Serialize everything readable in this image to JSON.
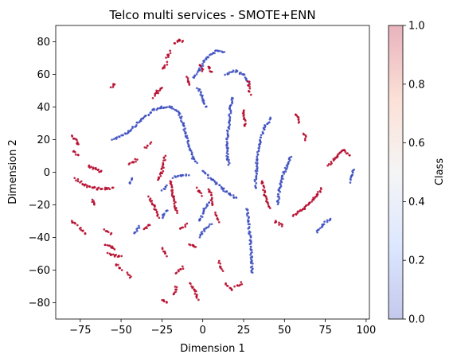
{
  "chart_data": {
    "type": "scatter",
    "title": "Telco multi services - SMOTE+ENN",
    "xlabel": "Dimension 1",
    "ylabel": "Dimension 2",
    "xlim": [
      -90,
      102
    ],
    "ylim": [
      -90,
      90
    ],
    "xticks": [
      -75,
      -50,
      -25,
      0,
      25,
      50,
      75,
      100
    ],
    "yticks": [
      -80,
      -60,
      -40,
      -20,
      0,
      20,
      40,
      60,
      80
    ],
    "xtick_labels": [
      "−75",
      "−50",
      "−25",
      "0",
      "25",
      "50",
      "75",
      "100"
    ],
    "ytick_labels": [
      "−80",
      "−60",
      "−40",
      "−20",
      "0",
      "20",
      "40",
      "60",
      "80"
    ],
    "grid": false,
    "legend": "none",
    "colorbar": {
      "label": "Class",
      "range": [
        0.0,
        1.0
      ],
      "ticks": [
        0.0,
        0.2,
        0.4,
        0.6,
        0.8,
        1.0
      ],
      "tick_labels": [
        "0.0",
        "0.2",
        "0.4",
        "0.6",
        "0.8",
        "1.0"
      ],
      "colormap": "coolwarm",
      "alpha": 0.3
    },
    "colors": {
      "class_0": "#3b4cc0",
      "class_1": "#b40426"
    },
    "series": [
      {
        "class": 0,
        "curves": [
          [
            [
              -6,
              58
            ],
            [
              -2,
              63
            ],
            [
              2,
              70
            ],
            [
              8,
              74
            ],
            [
              13,
              74
            ]
          ],
          [
            [
              -55,
              20
            ],
            [
              -45,
              25
            ],
            [
              -38,
              32
            ],
            [
              -30,
              38
            ],
            [
              -25,
              40
            ],
            [
              -20,
              40
            ],
            [
              -15,
              37
            ],
            [
              -12,
              30
            ],
            [
              -10,
              22
            ],
            [
              -8,
              15
            ],
            [
              -6,
              9
            ],
            [
              -4,
              6
            ]
          ],
          [
            [
              0,
              1
            ],
            [
              5,
              -4
            ],
            [
              12,
              -10
            ],
            [
              17,
              -14
            ],
            [
              21,
              -16
            ]
          ],
          [
            [
              14,
              60
            ],
            [
              20,
              62
            ],
            [
              25,
              60
            ],
            [
              28,
              55
            ]
          ],
          [
            [
              18,
              46
            ],
            [
              17,
              40
            ],
            [
              16,
              30
            ],
            [
              15,
              20
            ],
            [
              15,
              10
            ],
            [
              16,
              5
            ]
          ],
          [
            [
              27,
              -22
            ],
            [
              28,
              -30
            ],
            [
              29,
              -42
            ],
            [
              30,
              -55
            ],
            [
              30,
              -62
            ]
          ],
          [
            [
              32,
              -10
            ],
            [
              33,
              5
            ],
            [
              35,
              18
            ],
            [
              38,
              28
            ],
            [
              42,
              33
            ]
          ],
          [
            [
              46,
              -20
            ],
            [
              47,
              -10
            ],
            [
              49,
              -2
            ],
            [
              52,
              5
            ],
            [
              54,
              10
            ]
          ],
          [
            [
              70,
              -37
            ],
            [
              74,
              -32
            ],
            [
              78,
              -28
            ]
          ],
          [
            [
              90,
              -6
            ],
            [
              91,
              -2
            ],
            [
              92,
              2
            ]
          ],
          [
            [
              -2,
              -30
            ],
            [
              1,
              -23
            ],
            [
              4,
              -18
            ]
          ],
          [
            [
              -2,
              -40
            ],
            [
              1,
              -35
            ],
            [
              5,
              -32
            ]
          ],
          [
            [
              -18,
              -3
            ],
            [
              -14,
              -2
            ],
            [
              -9,
              -2
            ]
          ],
          [
            [
              -3,
              52
            ],
            [
              0,
              46
            ],
            [
              2,
              40
            ]
          ],
          [
            [
              -45,
              -7
            ],
            [
              -43,
              -4
            ]
          ],
          [
            [
              -25,
              -11
            ],
            [
              -22,
              -8
            ]
          ],
          [
            [
              -25,
              -28
            ],
            [
              -22,
              -23
            ]
          ],
          [
            [
              -42,
              -38
            ],
            [
              -39,
              -33
            ]
          ]
        ]
      },
      {
        "class": 1,
        "curves": [
          [
            [
              -17,
              79
            ],
            [
              -15,
              81
            ],
            [
              -12,
              80
            ]
          ],
          [
            [
              -22,
              70
            ],
            [
              -20,
              74
            ]
          ],
          [
            [
              -24,
              63
            ],
            [
              -22,
              67
            ]
          ],
          [
            [
              -56,
              52
            ],
            [
              -54,
              54
            ]
          ],
          [
            [
              -27,
              49
            ],
            [
              -25,
              52
            ]
          ],
          [
            [
              -30,
              46
            ],
            [
              -28,
              50
            ]
          ],
          [
            [
              -10,
              58
            ],
            [
              -8,
              54
            ]
          ],
          [
            [
              -2,
              66
            ],
            [
              0,
              62
            ]
          ],
          [
            [
              3,
              65
            ],
            [
              6,
              61
            ]
          ],
          [
            [
              28,
              56
            ],
            [
              29,
              48
            ]
          ],
          [
            [
              25,
              38
            ],
            [
              26,
              28
            ]
          ],
          [
            [
              36,
              -5
            ],
            [
              38,
              -14
            ],
            [
              41,
              -22
            ]
          ],
          [
            [
              44,
              -30
            ],
            [
              49,
              -33
            ]
          ],
          [
            [
              55,
              -27
            ],
            [
              62,
              -22
            ],
            [
              68,
              -16
            ],
            [
              73,
              -10
            ]
          ],
          [
            [
              77,
              4
            ],
            [
              82,
              10
            ],
            [
              86,
              14
            ],
            [
              90,
              10
            ]
          ],
          [
            [
              57,
              36
            ],
            [
              59,
              30
            ]
          ],
          [
            [
              62,
              24
            ],
            [
              63,
              20
            ]
          ],
          [
            [
              -80,
              22
            ],
            [
              -78,
              20
            ],
            [
              -76,
              17
            ]
          ],
          [
            [
              -79,
              13
            ],
            [
              -76,
              10
            ]
          ],
          [
            [
              -70,
              4
            ],
            [
              -66,
              2
            ],
            [
              -62,
              0
            ]
          ],
          [
            [
              -78,
              -4
            ],
            [
              -72,
              -8
            ],
            [
              -65,
              -10
            ],
            [
              -55,
              -10
            ]
          ],
          [
            [
              -68,
              -17
            ],
            [
              -66,
              -20
            ]
          ],
          [
            [
              -75,
              -34
            ],
            [
              -72,
              -38
            ]
          ],
          [
            [
              -80,
              -30
            ],
            [
              -77,
              -32
            ]
          ],
          [
            [
              -60,
              -44
            ],
            [
              -54,
              -47
            ]
          ],
          [
            [
              -58,
              -50
            ],
            [
              -50,
              -52
            ]
          ],
          [
            [
              -53,
              -56
            ],
            [
              -50,
              -60
            ]
          ],
          [
            [
              -46,
              -62
            ],
            [
              -44,
              -64
            ]
          ],
          [
            [
              -25,
              -47
            ],
            [
              -22,
              -51
            ]
          ],
          [
            [
              -8,
              -44
            ],
            [
              -4,
              -46
            ]
          ],
          [
            [
              -16,
              -62
            ],
            [
              -12,
              -58
            ]
          ],
          [
            [
              -18,
              -75
            ],
            [
              -16,
              -70
            ]
          ],
          [
            [
              -8,
              -68
            ],
            [
              -5,
              -72
            ],
            [
              -3,
              -78
            ]
          ],
          [
            [
              -25,
              -78
            ],
            [
              -22,
              -80
            ]
          ],
          [
            [
              -33,
              -15
            ],
            [
              -30,
              -20
            ],
            [
              -27,
              -28
            ]
          ],
          [
            [
              -36,
              -35
            ],
            [
              -32,
              -32
            ]
          ],
          [
            [
              -28,
              -5
            ],
            [
              -25,
              0
            ],
            [
              -23,
              10
            ]
          ],
          [
            [
              -45,
              5
            ],
            [
              -40,
              8
            ]
          ],
          [
            [
              -20,
              -5
            ],
            [
              -18,
              -15
            ],
            [
              -16,
              -25
            ]
          ],
          [
            [
              -14,
              -35
            ],
            [
              -10,
              -32
            ]
          ],
          [
            [
              4,
              -10
            ],
            [
              6,
              -20
            ]
          ],
          [
            [
              8,
              -25
            ],
            [
              10,
              -30
            ]
          ],
          [
            [
              10,
              -55
            ],
            [
              12,
              -60
            ]
          ],
          [
            [
              14,
              -68
            ],
            [
              18,
              -72
            ]
          ],
          [
            [
              20,
              -70
            ],
            [
              24,
              -68
            ]
          ],
          [
            [
              -60,
              -35
            ],
            [
              -56,
              -38
            ]
          ],
          [
            [
              -35,
              15
            ],
            [
              -32,
              18
            ]
          ],
          [
            [
              -3,
              -10
            ],
            [
              -1,
              -14
            ]
          ]
        ]
      }
    ]
  }
}
